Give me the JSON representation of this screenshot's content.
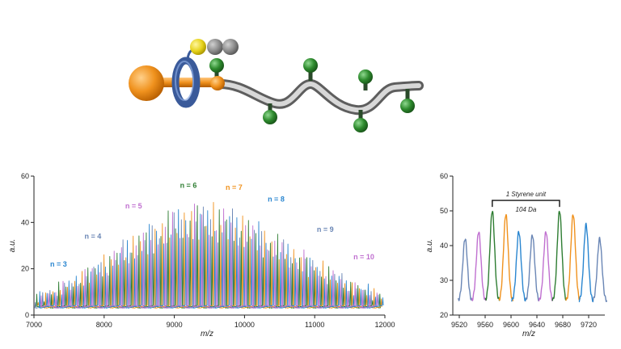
{
  "illustration": {
    "name": "rotaxane-polymer-cartoon",
    "colors": {
      "stopper": "#f0921e",
      "ring": "#4a6fb0",
      "chain": "#a6a6a6",
      "bead": "#2e8b2e",
      "ball_yellow": "#e6d21a",
      "ball_gray": "#8a8a8a"
    }
  },
  "series_colors": [
    "#6a86b5",
    "#2e7d32",
    "#f0921e",
    "#2a86d0",
    "#c070d0"
  ],
  "chart_data": [
    {
      "type": "line",
      "xlabel": "m/z",
      "ylabel": "a.u.",
      "xlim": [
        7000,
        12000
      ],
      "ylim": [
        0,
        60
      ],
      "x_ticks": [
        7000,
        8000,
        9000,
        10000,
        11000,
        12000
      ],
      "y_ticks": [
        0,
        20,
        40,
        60
      ],
      "envelope": {
        "x": [
          7000,
          7500,
          8000,
          8500,
          9000,
          9300,
          9600,
          10000,
          10500,
          11000,
          11500,
          12000
        ],
        "y": [
          8,
          15,
          25,
          36,
          45,
          48,
          47,
          43,
          33,
          24,
          15,
          9
        ]
      },
      "baseline": 3,
      "peak_spacing": 104,
      "labels": [
        {
          "text": "n = 3",
          "x": 7350,
          "y": 21,
          "color": "#2a86d0"
        },
        {
          "text": "n = 4",
          "x": 7840,
          "y": 33,
          "color": "#6a86b5"
        },
        {
          "text": "n = 5",
          "x": 8420,
          "y": 46,
          "color": "#c070d0"
        },
        {
          "text": "n = 6",
          "x": 9200,
          "y": 55,
          "color": "#2e7d32"
        },
        {
          "text": "n = 7",
          "x": 9850,
          "y": 54,
          "color": "#f0921e"
        },
        {
          "text": "n = 8",
          "x": 10450,
          "y": 49,
          "color": "#2a86d0"
        },
        {
          "text": "n = 9",
          "x": 11150,
          "y": 36,
          "color": "#6a86b5"
        },
        {
          "text": "n = 10",
          "x": 11700,
          "y": 24,
          "color": "#c070d0"
        }
      ]
    },
    {
      "type": "line",
      "xlabel": "m/z",
      "ylabel": "a.u.",
      "xlim": [
        9510,
        9745
      ],
      "ylim": [
        20,
        60
      ],
      "x_ticks": [
        9520,
        9560,
        9600,
        9640,
        9680,
        9720
      ],
      "y_ticks": [
        20,
        30,
        40,
        50,
        60
      ],
      "series": [
        {
          "color": "#6a86b5",
          "peaks": [
            [
              9529,
              42
            ],
            [
              9633,
              43
            ],
            [
              9737,
              42
            ]
          ]
        },
        {
          "color": "#c070d0",
          "peaks": [
            [
              9550,
              44
            ],
            [
              9654,
              44
            ]
          ]
        },
        {
          "color": "#2e7d32",
          "peaks": [
            [
              9571,
              50
            ],
            [
              9675,
              50
            ]
          ]
        },
        {
          "color": "#f0921e",
          "peaks": [
            [
              9592,
              49
            ],
            [
              9696,
              49
            ]
          ]
        },
        {
          "color": "#2a86d0",
          "peaks": [
            [
              9612,
              44
            ],
            [
              9716,
              46
            ]
          ]
        }
      ],
      "annotation": {
        "x1": 9571,
        "x2": 9675,
        "y": 53,
        "line1": "1 Styrene unit",
        "line2": "104 Da"
      }
    }
  ]
}
